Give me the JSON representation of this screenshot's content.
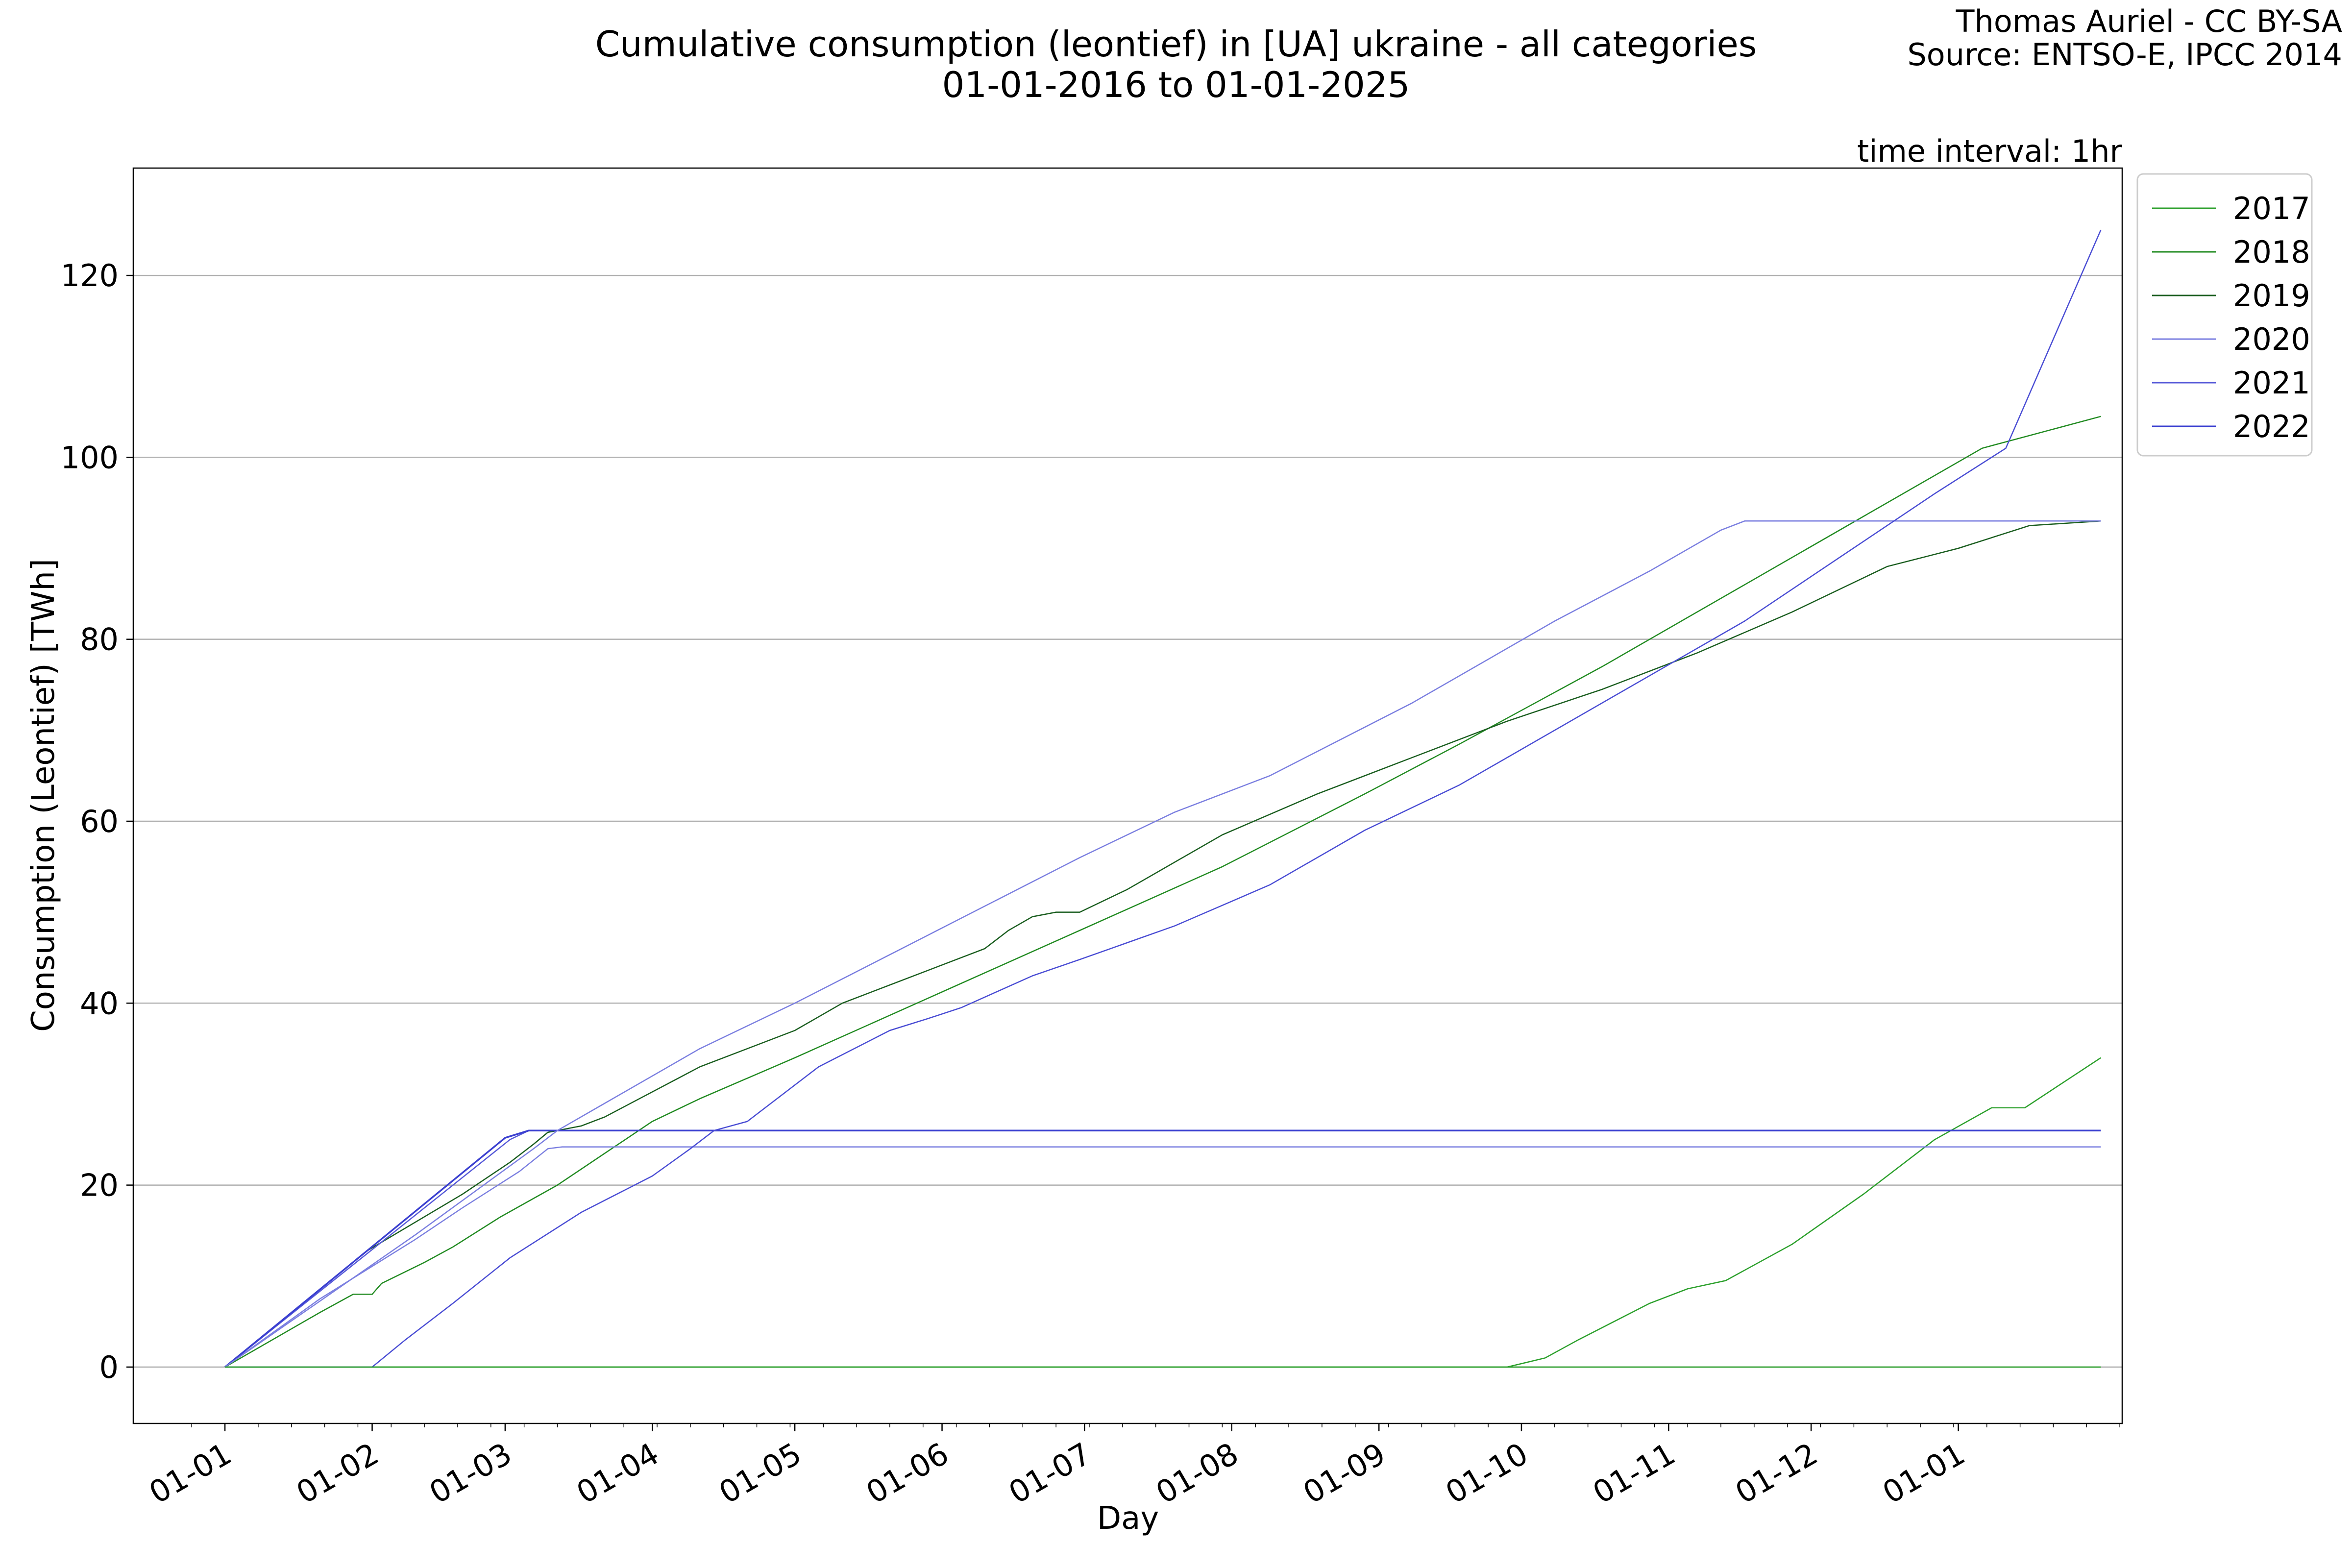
{
  "chart_data": {
    "type": "line",
    "title_line1": "Cumulative consumption (leontief) in [UA] ukraine - all categories",
    "title_line2": "01-01-2016 to 01-01-2025",
    "credit_line1": "Thomas Auriel - CC BY-SA",
    "credit_line2": "Source: ENTSO-E, IPCC 2014",
    "annotation": "time interval: 1hr",
    "xlabel": "Day",
    "ylabel": "Consumption (Leontief) [TWh]",
    "x_ticks": [
      "01-01",
      "01-02",
      "01-03",
      "01-04",
      "01-05",
      "01-06",
      "01-07",
      "01-08",
      "01-09",
      "01-10",
      "01-11",
      "01-12",
      "01-01"
    ],
    "y_ticks": [
      0,
      20,
      40,
      60,
      80,
      100,
      120
    ],
    "ylim": [
      -6.2,
      131.8
    ],
    "xlim_days": [
      -19.3,
      399.5
    ],
    "grid": "horizontal",
    "legend_placement": "outside-right-top",
    "series": [
      {
        "name": "2017",
        "color": "#2ca02c",
        "width": 2.5,
        "points": [
          [
            0,
            0
          ],
          [
            270,
            0
          ],
          [
            274,
            0.5
          ],
          [
            278,
            1
          ],
          [
            285,
            3
          ],
          [
            300,
            7
          ],
          [
            308,
            8.6
          ],
          [
            316,
            9.5
          ],
          [
            330,
            13.5
          ],
          [
            345,
            19
          ],
          [
            360,
            25
          ],
          [
            372,
            28.5
          ],
          [
            379,
            28.5
          ],
          [
            395,
            34
          ]
        ]
      },
      {
        "name": "2018",
        "color": "#228b22",
        "width": 2.5,
        "points": [
          [
            0,
            0
          ],
          [
            20,
            6
          ],
          [
            27,
            8
          ],
          [
            31,
            8
          ],
          [
            33,
            9.2
          ],
          [
            42,
            11.5
          ],
          [
            48,
            13.2
          ],
          [
            58,
            16.5
          ],
          [
            70,
            20
          ],
          [
            80,
            23.5
          ],
          [
            90,
            27
          ],
          [
            100,
            29.5
          ],
          [
            120,
            34
          ],
          [
            150,
            41
          ],
          [
            180,
            48
          ],
          [
            210,
            55
          ],
          [
            240,
            63
          ],
          [
            260,
            68.5
          ],
          [
            290,
            77
          ],
          [
            320,
            86
          ],
          [
            345,
            93.5
          ],
          [
            370,
            101
          ],
          [
            395,
            104.5
          ]
        ]
      },
      {
        "name": "2019",
        "color": "#1b5e20",
        "width": 2.5,
        "points": [
          [
            0,
            0
          ],
          [
            30,
            12.8
          ],
          [
            50,
            19
          ],
          [
            60,
            22.5
          ],
          [
            65,
            24.5
          ],
          [
            68,
            25.8
          ],
          [
            75,
            26.5
          ],
          [
            80,
            27.5
          ],
          [
            100,
            33
          ],
          [
            120,
            37
          ],
          [
            130,
            40
          ],
          [
            140,
            42
          ],
          [
            160,
            46
          ],
          [
            165,
            48
          ],
          [
            170,
            49.5
          ],
          [
            175,
            50
          ],
          [
            180,
            50
          ],
          [
            190,
            52.5
          ],
          [
            210,
            58.5
          ],
          [
            230,
            63
          ],
          [
            250,
            67
          ],
          [
            270,
            71
          ],
          [
            290,
            74.5
          ],
          [
            310,
            78.5
          ],
          [
            330,
            83
          ],
          [
            350,
            88
          ],
          [
            365,
            90
          ],
          [
            380,
            92.5
          ],
          [
            395,
            93
          ]
        ]
      },
      {
        "name": "2020",
        "color": "#7b7fe0",
        "width": 2.5,
        "points": [
          [
            0,
            0
          ],
          [
            20,
            7.5
          ],
          [
            40,
            14
          ],
          [
            50,
            17.5
          ],
          [
            62,
            21.5
          ],
          [
            68,
            24
          ],
          [
            71,
            24.2
          ],
          [
            80,
            24.2
          ],
          [
            200,
            24.2
          ],
          [
            395,
            24.2
          ]
        ]
      },
      {
        "name": "2021",
        "color": "#5558d8",
        "width": 2.5,
        "points": [
          [
            0,
            0
          ],
          [
            60,
            25
          ],
          [
            64,
            26
          ],
          [
            100,
            26
          ],
          [
            200,
            26
          ],
          [
            395,
            26
          ]
        ]
      },
      {
        "name": "2022",
        "color": "#3a3fd0",
        "width": 3.5,
        "points": [
          [
            0,
            0
          ],
          [
            59,
            25.2
          ],
          [
            64,
            26
          ],
          [
            100,
            26
          ],
          [
            200,
            26
          ],
          [
            395,
            26
          ]
        ]
      },
      {
        "name": "",
        "color": "#7b7fe0",
        "width": 2.5,
        "points": [
          [
            0,
            0
          ],
          [
            40,
            14.5
          ],
          [
            65,
            24
          ],
          [
            70,
            26
          ],
          [
            80,
            29
          ],
          [
            100,
            35
          ],
          [
            120,
            40
          ],
          [
            150,
            48
          ],
          [
            180,
            56
          ],
          [
            200,
            61
          ],
          [
            210,
            63
          ],
          [
            220,
            65
          ],
          [
            250,
            73
          ],
          [
            280,
            82
          ],
          [
            300,
            87.5
          ],
          [
            315,
            92
          ],
          [
            320,
            93
          ],
          [
            395,
            93
          ]
        ]
      },
      {
        "name": "",
        "color": "#4a4dd4",
        "width": 2.5,
        "points": [
          [
            0,
            0
          ],
          [
            31,
            0
          ],
          [
            38,
            3
          ],
          [
            48,
            7
          ],
          [
            60,
            12
          ],
          [
            75,
            17
          ],
          [
            90,
            21
          ],
          [
            98,
            24
          ],
          [
            103,
            26
          ],
          [
            110,
            27
          ],
          [
            125,
            33
          ],
          [
            140,
            37
          ],
          [
            148,
            38.3
          ],
          [
            155,
            39.5
          ],
          [
            170,
            43
          ],
          [
            180,
            44.8
          ],
          [
            200,
            48.5
          ],
          [
            220,
            53
          ],
          [
            240,
            59
          ],
          [
            260,
            64
          ],
          [
            280,
            70
          ],
          [
            300,
            76
          ],
          [
            320,
            82
          ],
          [
            340,
            89
          ],
          [
            360,
            96
          ],
          [
            375,
            101
          ],
          [
            395,
            125
          ]
        ]
      },
      {
        "name": "",
        "color": "#2ca02c",
        "width": 2.5,
        "points": [
          [
            0,
            0
          ],
          [
            395,
            0
          ]
        ]
      }
    ]
  }
}
